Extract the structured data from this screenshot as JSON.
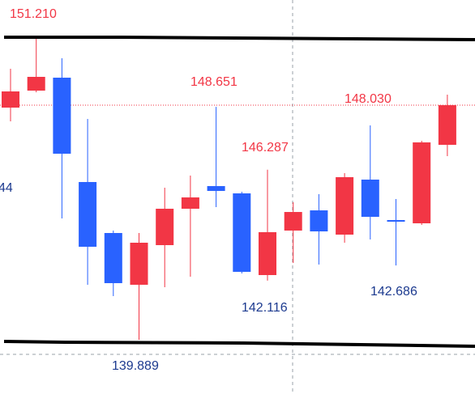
{
  "chart_data": {
    "type": "candlestick",
    "up_color": "#f23645",
    "down_color": "#2962ff",
    "ylim": [
      137.85,
      152.671
    ],
    "open": [
      148.623,
      149.262,
      149.749,
      145.824,
      143.906,
      141.959,
      143.45,
      144.819,
      145.671,
      145.397,
      142.324,
      143.998,
      144.758,
      143.845,
      145.915,
      144.393,
      144.271,
      147.223
    ],
    "high": [
      150.084,
      151.21,
      150.48,
      148.197,
      143.998,
      143.906,
      145.61,
      146.067,
      148.651,
      145.458,
      146.287,
      145.063,
      145.367,
      146.158,
      147.954,
      145.184,
      147.376,
      149.11
    ],
    "low": [
      148.106,
      149.2,
      144.454,
      141.959,
      141.533,
      139.889,
      141.867,
      142.263,
      144.88,
      142.385,
      142.116,
      142.78,
      142.719,
      143.541,
      143.663,
      142.686,
      144.21,
      146.797
    ],
    "close": [
      149.232,
      149.78,
      146.889,
      143.389,
      142.02,
      143.541,
      144.819,
      145.245,
      145.489,
      142.445,
      143.937,
      144.697,
      143.967,
      146.006,
      144.515,
      144.332,
      147.315,
      148.715
    ],
    "annotations": [
      "151.210",
      "148.651",
      "146.287",
      "148.030",
      "142.116",
      "142.686",
      "139.889",
      "44"
    ]
  }
}
